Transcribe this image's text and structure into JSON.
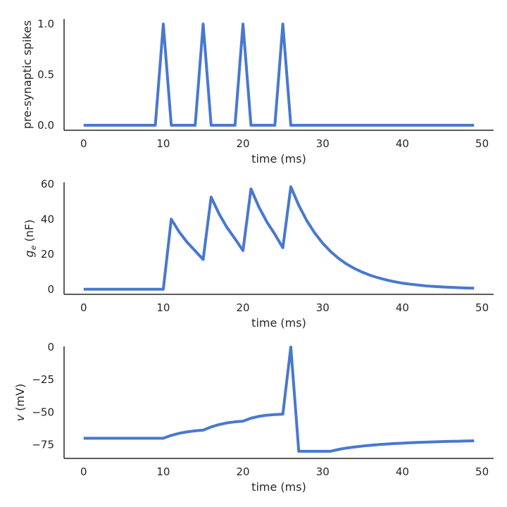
{
  "series_color": "#4878CF",
  "chart_data": [
    {
      "type": "line",
      "xlabel": "time (ms)",
      "ylabel": "pre-synaptic spikes",
      "xlim": [
        -2.45,
        51.45
      ],
      "ylim": [
        -0.05,
        1.05
      ],
      "xticks": [
        0,
        10,
        20,
        30,
        40,
        50
      ],
      "yticks": [
        0.0,
        0.5,
        1.0
      ],
      "ytick_labels": [
        "0.0",
        "0.5",
        "1.0"
      ],
      "series": [
        {
          "name": "spikes",
          "x": [
            0,
            1,
            2,
            3,
            4,
            5,
            6,
            7,
            8,
            9,
            10,
            11,
            12,
            13,
            14,
            15,
            16,
            17,
            18,
            19,
            20,
            21,
            22,
            23,
            24,
            25,
            26,
            27,
            28,
            29,
            30,
            31,
            32,
            33,
            34,
            35,
            36,
            37,
            38,
            39,
            40,
            41,
            42,
            43,
            44,
            45,
            46,
            47,
            48,
            49
          ],
          "values": [
            0,
            0,
            0,
            0,
            0,
            0,
            0,
            0,
            0,
            0,
            1,
            0,
            0,
            0,
            0,
            1,
            0,
            0,
            0,
            0,
            1,
            0,
            0,
            0,
            0,
            1,
            0,
            0,
            0,
            0,
            0,
            0,
            0,
            0,
            0,
            0,
            0,
            0,
            0,
            0,
            0,
            0,
            0,
            0,
            0,
            0,
            0,
            0,
            0,
            0
          ]
        }
      ]
    },
    {
      "type": "line",
      "xlabel": "time (ms)",
      "ylabel": "g",
      "ylabel_sub": "e",
      "ylabel_unit": " (nF)",
      "xlim": [
        -2.45,
        51.45
      ],
      "ylim": [
        -2.9,
        61.0
      ],
      "xticks": [
        0,
        10,
        20,
        30,
        40,
        50
      ],
      "yticks": [
        0,
        20,
        40,
        60
      ],
      "ytick_labels": [
        "0",
        "20",
        "40",
        "60"
      ],
      "series": [
        {
          "name": "g_e",
          "x": [
            0,
            1,
            2,
            3,
            4,
            5,
            6,
            7,
            8,
            9,
            10,
            11,
            12,
            13,
            14,
            15,
            16,
            17,
            18,
            19,
            20,
            21,
            22,
            23,
            24,
            25,
            26,
            27,
            28,
            29,
            30,
            31,
            32,
            33,
            34,
            35,
            36,
            37,
            38,
            39,
            40,
            41,
            42,
            43,
            44,
            45,
            46,
            47,
            48,
            49
          ],
          "values": [
            0,
            0,
            0,
            0,
            0,
            0,
            0,
            0,
            0,
            0,
            0,
            40,
            32.7,
            26.8,
            21.9,
            17.0,
            52.6,
            43.0,
            35.2,
            28.8,
            22.1,
            57.3,
            46.9,
            38.4,
            31.4,
            23.7,
            58.5,
            47.9,
            39.2,
            32.1,
            26.3,
            21.5,
            17.6,
            14.4,
            11.8,
            9.7,
            7.9,
            6.5,
            5.3,
            4.3,
            3.5,
            2.9,
            2.4,
            1.9,
            1.6,
            1.3,
            1.1,
            0.9,
            0.7,
            0.6
          ]
        }
      ]
    },
    {
      "type": "line",
      "xlabel": "time (ms)",
      "ylabel": "v",
      "ylabel_unit": " (mV)",
      "xlim": [
        -2.45,
        51.45
      ],
      "ylim": [
        -85.5,
        0.5
      ],
      "xticks": [
        0,
        10,
        20,
        30,
        40,
        50
      ],
      "yticks": [
        0,
        -25,
        -50,
        -75
      ],
      "ytick_labels": [
        "0",
        "−25",
        "−50",
        "−75"
      ],
      "series": [
        {
          "name": "v",
          "x": [
            0,
            1,
            2,
            3,
            4,
            5,
            6,
            7,
            8,
            9,
            10,
            11,
            12,
            13,
            14,
            15,
            16,
            17,
            18,
            19,
            20,
            21,
            22,
            23,
            24,
            25,
            26,
            27,
            28,
            29,
            30,
            31,
            32,
            33,
            34,
            35,
            36,
            37,
            38,
            39,
            40,
            41,
            42,
            43,
            44,
            45,
            46,
            47,
            48,
            49
          ],
          "values": [
            -70,
            -70,
            -70,
            -70,
            -70,
            -70,
            -70,
            -70,
            -70,
            -70,
            -70,
            -67.8,
            -66.2,
            -65.1,
            -64.3,
            -63.8,
            -61.3,
            -59.5,
            -58.2,
            -57.4,
            -56.9,
            -54.6,
            -53.2,
            -52.3,
            -51.8,
            -51.5,
            0,
            -80,
            -80,
            -80,
            -80,
            -80,
            -78.6,
            -77.5,
            -76.7,
            -76.0,
            -75.4,
            -74.9,
            -74.5,
            -74.1,
            -73.8,
            -73.5,
            -73.2,
            -73.0,
            -72.8,
            -72.6,
            -72.4,
            -72.3,
            -72.1,
            -72.0
          ]
        }
      ]
    }
  ]
}
